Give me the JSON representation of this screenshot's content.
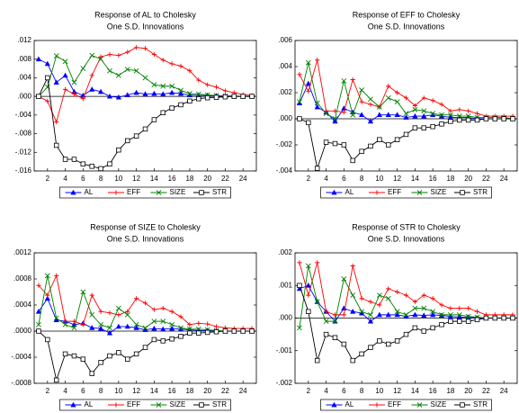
{
  "chart_data": [
    {
      "type": "line",
      "title": "Response of AL to Cholesky",
      "subtitle": "One S.D. Innovations",
      "x": [
        1,
        2,
        3,
        4,
        5,
        6,
        7,
        8,
        9,
        10,
        11,
        12,
        13,
        14,
        15,
        16,
        17,
        18,
        19,
        20,
        21,
        22,
        23,
        24,
        25
      ],
      "xlim": [
        0.5,
        25.5
      ],
      "xticks": [
        2,
        4,
        6,
        8,
        10,
        12,
        14,
        16,
        18,
        20,
        22,
        24
      ],
      "ylim": [
        -0.016,
        0.012
      ],
      "yticks": [
        {
          "value": 0.012,
          "label": ".012"
        },
        {
          "value": 0.008,
          "label": ".008"
        },
        {
          "value": 0.004,
          "label": ".004"
        },
        {
          "value": 0,
          "label": ".000"
        },
        {
          "value": -0.004,
          "label": "-.004"
        },
        {
          "value": -0.008,
          "label": "-.008"
        },
        {
          "value": -0.012,
          "label": "-.012"
        },
        {
          "value": -0.016,
          "label": "-.016"
        }
      ],
      "legend": "bottom",
      "series": [
        {
          "name": "AL",
          "color": "#0000ff",
          "marker": "triangle",
          "values": [
            0.008,
            0.007,
            0.003,
            0.0045,
            0.001,
            0.0002,
            0.0015,
            0.001,
            0,
            -0.0002,
            0.0003,
            0.0008,
            0.0005,
            0.0006,
            0.0005,
            0.0008,
            0.0006,
            0.0003,
            0.0002,
            0.0002,
            0.0001,
            0.0001,
            0.0001,
            0,
            0
          ]
        },
        {
          "name": "EFF",
          "color": "#ff0000",
          "marker": "plus",
          "values": [
            0,
            -0.001,
            -0.0055,
            0.0015,
            0.0005,
            -0.0005,
            0.0045,
            0.0085,
            0.009,
            0.0088,
            0.0095,
            0.0105,
            0.0103,
            0.009,
            0.0078,
            0.007,
            0.0065,
            0.0055,
            0.0035,
            0.0025,
            0.002,
            0.0012,
            0.0008,
            0.0004,
            0.0002
          ]
        },
        {
          "name": "SIZE",
          "color": "#008000",
          "marker": "x",
          "values": [
            0,
            0.002,
            0.0087,
            0.0075,
            0.003,
            0.006,
            0.0088,
            0.008,
            0.0055,
            0.0045,
            0.0058,
            0.0055,
            0.004,
            0.0025,
            0.0022,
            0.0022,
            0.0013,
            0.0006,
            0.0005,
            0.0003,
            0.0002,
            0.0001,
            0,
            0,
            0
          ]
        },
        {
          "name": "STR",
          "color": "#000000",
          "marker": "square",
          "values": [
            0,
            0.004,
            -0.0105,
            -0.0135,
            -0.0135,
            -0.0145,
            -0.015,
            -0.0155,
            -0.0145,
            -0.0115,
            -0.0095,
            -0.0085,
            -0.007,
            -0.005,
            -0.0035,
            -0.0025,
            -0.0018,
            -0.001,
            -0.0005,
            -0.0003,
            -0.0002,
            -0.0001,
            0,
            0,
            0
          ]
        }
      ]
    },
    {
      "type": "line",
      "title": "Response of EFF to Cholesky",
      "subtitle": "One S.D. Innovations",
      "x": [
        1,
        2,
        3,
        4,
        5,
        6,
        7,
        8,
        9,
        10,
        11,
        12,
        13,
        14,
        15,
        16,
        17,
        18,
        19,
        20,
        21,
        22,
        23,
        24,
        25
      ],
      "xlim": [
        0.5,
        25.5
      ],
      "xticks": [
        2,
        4,
        6,
        8,
        10,
        12,
        14,
        16,
        18,
        20,
        22,
        24
      ],
      "ylim": [
        -0.004,
        0.006
      ],
      "yticks": [
        {
          "value": 0.006,
          "label": ".006"
        },
        {
          "value": 0.004,
          "label": ".004"
        },
        {
          "value": 0.002,
          "label": ".002"
        },
        {
          "value": 0,
          "label": ".000"
        },
        {
          "value": -0.002,
          "label": "-.002"
        },
        {
          "value": -0.004,
          "label": "-.004"
        }
      ],
      "legend": "bottom",
      "series": [
        {
          "name": "AL",
          "color": "#0000ff",
          "marker": "triangle",
          "values": [
            0.0012,
            0.0027,
            0.0009,
            0.0005,
            -0.0002,
            0.0008,
            0.0005,
            0.0003,
            -0.0002,
            0.0003,
            0.0003,
            0.0003,
            0.0001,
            0.0002,
            0.0002,
            0.0003,
            0.0002,
            0.0001,
            0.0001,
            0.0001,
            0,
            0,
            0,
            0,
            0
          ]
        },
        {
          "name": "EFF",
          "color": "#ff0000",
          "marker": "plus",
          "values": [
            0.0034,
            0.0021,
            0.0045,
            0.0006,
            0.0006,
            0.0005,
            0.003,
            0.0013,
            0.0011,
            0.0009,
            0.0025,
            0.002,
            0.0016,
            0.001,
            0.0016,
            0.0014,
            0.0011,
            0.0006,
            0.0007,
            0.0006,
            0.0004,
            0.0002,
            0.0002,
            0.0002,
            0.0002
          ]
        },
        {
          "name": "SIZE",
          "color": "#008000",
          "marker": "x",
          "values": [
            0.0013,
            0.0043,
            0.0012,
            0.0004,
            0,
            0.0029,
            0.0003,
            0.0022,
            0.0015,
            0.0009,
            0.0016,
            0.0013,
            0.0004,
            0.0007,
            0.0006,
            0.0004,
            0.0003,
            0.0003,
            0.0002,
            0.0002,
            0.0001,
            0.0001,
            0.0001,
            0.0001,
            0
          ]
        },
        {
          "name": "STR",
          "color": "#000000",
          "marker": "square",
          "values": [
            0,
            -0.0003,
            -0.0038,
            -0.0018,
            -0.0019,
            -0.002,
            -0.0032,
            -0.0025,
            -0.0021,
            -0.0016,
            -0.002,
            -0.0016,
            -0.0012,
            -0.0007,
            -0.0007,
            -0.0006,
            -0.0004,
            -0.0002,
            -0.0001,
            -0.0001,
            -0.0001,
            0,
            0,
            0,
            0
          ]
        }
      ]
    },
    {
      "type": "line",
      "title": "Response of SIZE to Cholesky",
      "subtitle": "One S.D. Innovations",
      "x": [
        1,
        2,
        3,
        4,
        5,
        6,
        7,
        8,
        9,
        10,
        11,
        12,
        13,
        14,
        15,
        16,
        17,
        18,
        19,
        20,
        21,
        22,
        23,
        24,
        25
      ],
      "xlim": [
        0.5,
        25.5
      ],
      "xticks": [
        2,
        4,
        6,
        8,
        10,
        12,
        14,
        16,
        18,
        20,
        22,
        24
      ],
      "ylim": [
        -0.0008,
        0.0012
      ],
      "yticks": [
        {
          "value": 0.0012,
          "label": ".0012"
        },
        {
          "value": 0.0008,
          "label": ".0008"
        },
        {
          "value": 0.0004,
          "label": ".0004"
        },
        {
          "value": 0,
          "label": ".0000"
        },
        {
          "value": -0.0004,
          "label": "-.0004"
        },
        {
          "value": -0.0008,
          "label": "-.0008"
        }
      ],
      "legend": "bottom",
      "series": [
        {
          "name": "AL",
          "color": "#0000ff",
          "marker": "triangle",
          "values": [
            0.0003,
            0.0005,
            0.00017,
            0.00015,
            0.0001,
            0.00012,
            5e-05,
            4e-05,
            -3e-05,
            7e-05,
            7e-05,
            5e-05,
            2e-05,
            4e-05,
            3e-05,
            4e-05,
            3e-05,
            2e-05,
            1e-05,
            1e-05,
            0,
            0,
            0,
            0,
            0
          ]
        },
        {
          "name": "EFF",
          "color": "#ff0000",
          "marker": "plus",
          "values": [
            0.0007,
            0.00055,
            0.00085,
            0.00015,
            0.00015,
            0.0001,
            0.00055,
            0.0003,
            0.00028,
            0.00025,
            0.0003,
            0.0005,
            0.00043,
            0.00033,
            0.00035,
            0.0003,
            0.00022,
            0.0001,
            0.00012,
            0.00011,
            7e-05,
            5e-05,
            4e-05,
            4e-05,
            4e-05
          ]
        },
        {
          "name": "SIZE",
          "color": "#008000",
          "marker": "x",
          "values": [
            0.0001,
            0.00085,
            0.0002,
            0.0001,
            5e-05,
            0.0006,
            0.00025,
            0.0001,
            5e-05,
            0.00035,
            0.00025,
            0.0001,
            5e-05,
            0.00015,
            0.00015,
            0.0001,
            5e-05,
            3e-05,
            3e-05,
            2e-05,
            1e-05,
            0,
            0,
            0,
            0
          ]
        },
        {
          "name": "STR",
          "color": "#000000",
          "marker": "square",
          "values": [
            0,
            -0.00013,
            -0.00075,
            -0.00035,
            -0.00038,
            -0.00043,
            -0.00065,
            -0.00048,
            -0.00038,
            -0.00033,
            -0.00043,
            -0.00035,
            -0.00025,
            -0.00013,
            -0.00015,
            -0.00012,
            -8e-05,
            -3e-05,
            -3e-05,
            -2e-05,
            -1e-05,
            0,
            0,
            0,
            0
          ]
        }
      ]
    },
    {
      "type": "line",
      "title": "Response of STR to Cholesky",
      "subtitle": "One S.D. Innovations",
      "x": [
        1,
        2,
        3,
        4,
        5,
        6,
        7,
        8,
        9,
        10,
        11,
        12,
        13,
        14,
        15,
        16,
        17,
        18,
        19,
        20,
        21,
        22,
        23,
        24,
        25
      ],
      "xlim": [
        0.5,
        25.5
      ],
      "xticks": [
        2,
        4,
        6,
        8,
        10,
        12,
        14,
        16,
        18,
        20,
        22,
        24
      ],
      "ylim": [
        -0.002,
        0.002
      ],
      "yticks": [
        {
          "value": 0.002,
          "label": ".002"
        },
        {
          "value": 0.001,
          "label": ".001"
        },
        {
          "value": 0,
          "label": ".000"
        },
        {
          "value": -0.001,
          "label": "-.001"
        },
        {
          "value": -0.002,
          "label": "-.002"
        }
      ],
      "legend": "bottom",
      "series": [
        {
          "name": "AL",
          "color": "#0000ff",
          "marker": "triangle",
          "values": [
            0.0009,
            0.001,
            0.0005,
            0.0002,
            -0.0001,
            0.0003,
            0.0002,
            0.00015,
            -0.0001,
            0.0001,
            0.0001,
            0.0001,
            5e-05,
            0.0001,
            8e-05,
            0.0001,
            8e-05,
            5e-05,
            3e-05,
            3e-05,
            0,
            0,
            0,
            0,
            0
          ]
        },
        {
          "name": "EFF",
          "color": "#ff0000",
          "marker": "plus",
          "values": [
            0.0017,
            0.0007,
            0.0017,
            0.0002,
            0.0001,
            0.0001,
            0.0016,
            0.0006,
            0.0005,
            0.0004,
            0.0009,
            0.0008,
            0.0007,
            0.0005,
            0.0007,
            0.0006,
            0.0004,
            0.0003,
            0.0003,
            0.0003,
            0.0002,
            0.0001,
            0.0001,
            0.0001,
            0.0001
          ]
        },
        {
          "name": "SIZE",
          "color": "#008000",
          "marker": "x",
          "values": [
            -0.0003,
            0.0016,
            0.0005,
            -0.0001,
            -0.0001,
            0.0012,
            0.0007,
            0.0002,
            0.0001,
            0.0007,
            0.0006,
            0.0002,
            0.0001,
            0.0003,
            0.0003,
            0.0002,
            0.0001,
            0.0001,
            0.0001,
            5e-05,
            3e-05,
            0,
            0,
            0,
            0
          ]
        },
        {
          "name": "STR",
          "color": "#000000",
          "marker": "square",
          "values": [
            0.001,
            0.0002,
            -0.0013,
            -0.0005,
            -0.0006,
            -0.0008,
            -0.0013,
            -0.0011,
            -0.0009,
            -0.0007,
            -0.0008,
            -0.0007,
            -0.0005,
            -0.0003,
            -0.0004,
            -0.0003,
            -0.0002,
            -0.0001,
            -0.0001,
            -0.0001,
            -5e-05,
            0,
            0,
            0,
            0
          ]
        }
      ]
    }
  ]
}
